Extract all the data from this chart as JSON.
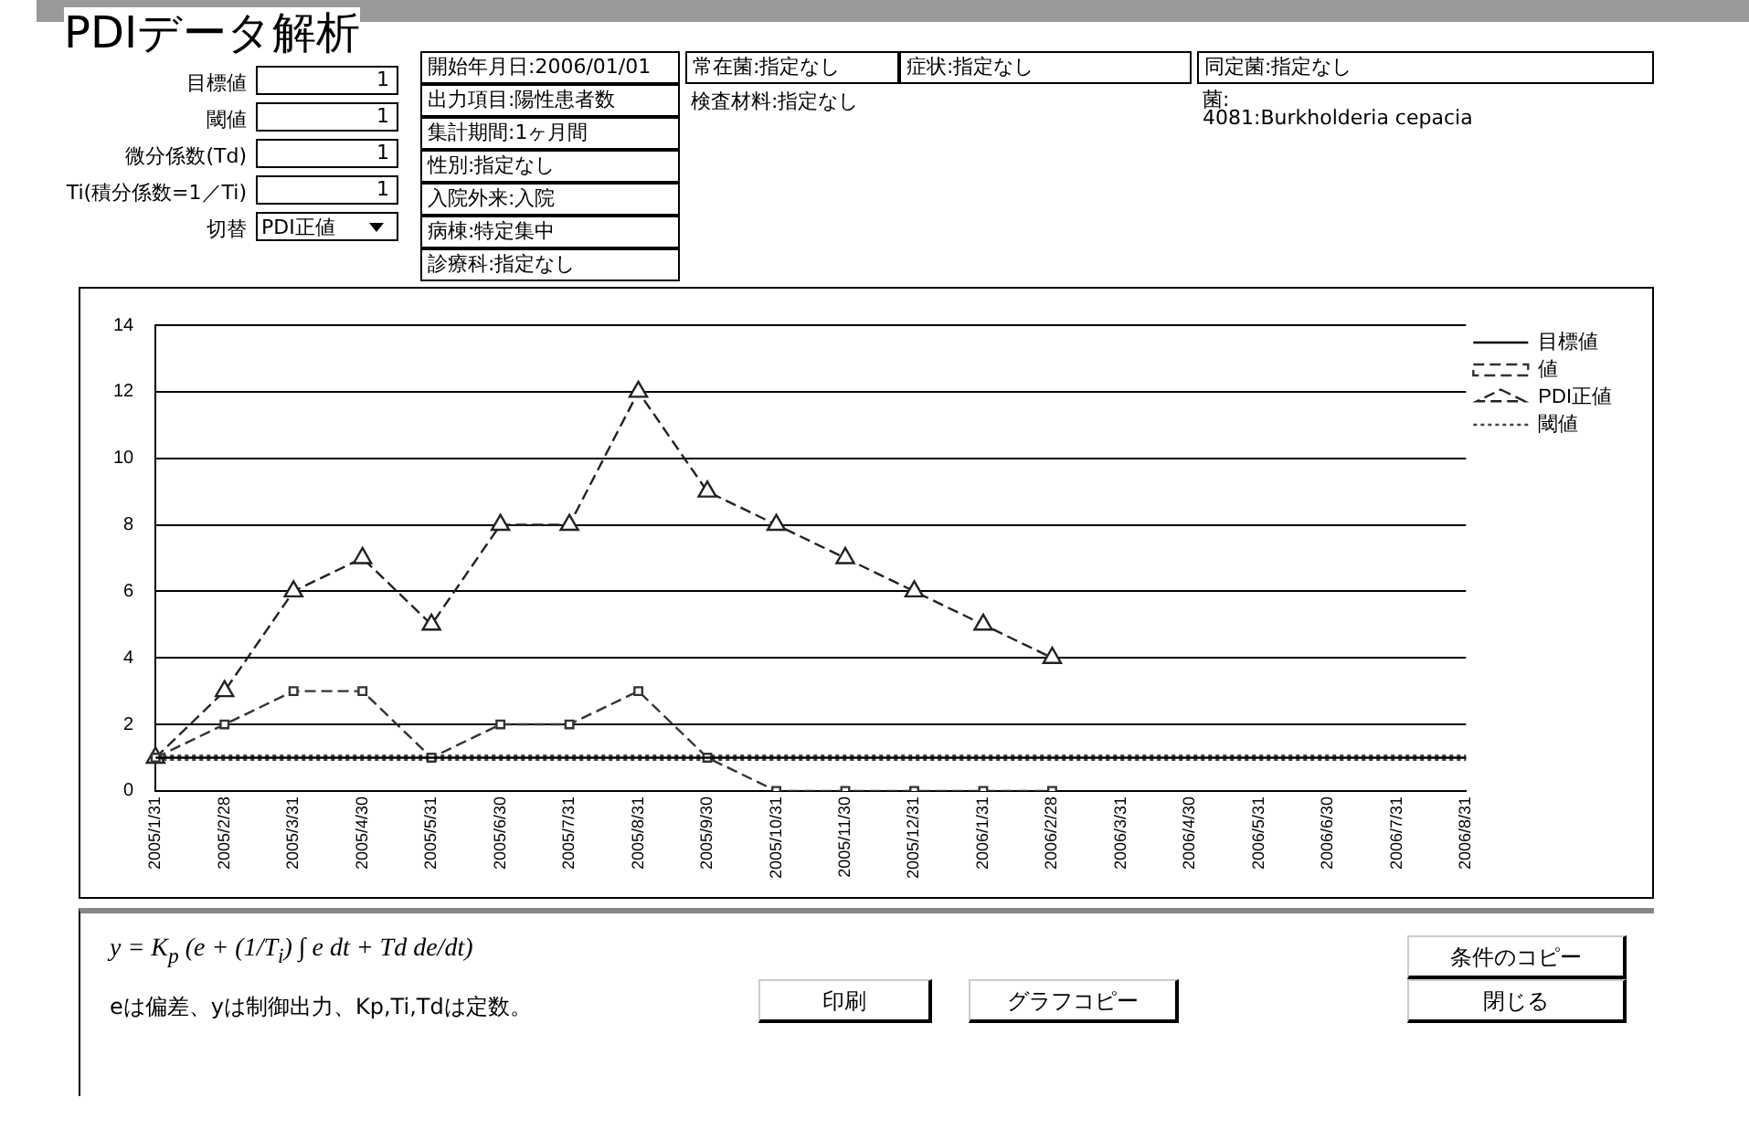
{
  "chart_data": {
    "type": "line",
    "title": "PDIデータ解析",
    "categories": [
      "2005/1/31",
      "2005/2/28",
      "2005/3/31",
      "2005/4/30",
      "2005/5/31",
      "2005/6/30",
      "2005/7/31",
      "2005/8/31",
      "2005/9/30",
      "2005/10/31",
      "2005/11/30",
      "2005/12/31",
      "2006/1/31",
      "2006/2/28",
      "2006/3/31",
      "2006/4/30",
      "2006/5/31",
      "2006/6/30",
      "2006/7/31",
      "2006/8/31"
    ],
    "series": [
      {
        "name": "目標値",
        "color": "#000000",
        "marker": "none",
        "line_style": "solid",
        "values": [
          1,
          1,
          1,
          1,
          1,
          1,
          1,
          1,
          1,
          1,
          1,
          1,
          1,
          1,
          1,
          1,
          1,
          1,
          1,
          1
        ]
      },
      {
        "name": "値",
        "color": "#333333",
        "marker": "square",
        "line_style": "dashed",
        "values": [
          1,
          2,
          3,
          3,
          1,
          2,
          2,
          3,
          1,
          0,
          0,
          0,
          0,
          0,
          null,
          null,
          null,
          null,
          null,
          null
        ]
      },
      {
        "name": "PDI正値",
        "color": "#222222",
        "marker": "triangle",
        "line_style": "dashed",
        "values": [
          1,
          3,
          6,
          7,
          5,
          8,
          8,
          12,
          9,
          8,
          7,
          6,
          5,
          4,
          null,
          null,
          null,
          null,
          null,
          null
        ]
      },
      {
        "name": "閾値",
        "color": "#444444",
        "marker": "none",
        "line_style": "dotted",
        "values": [
          1,
          1,
          1,
          1,
          1,
          1,
          1,
          1,
          1,
          1,
          1,
          1,
          1,
          1,
          1,
          1,
          1,
          1,
          1,
          1
        ]
      }
    ],
    "ylim": [
      0,
      14
    ],
    "yticks": [
      0,
      2,
      4,
      6,
      8,
      10,
      12,
      14
    ],
    "grid": "y",
    "legend": "right",
    "annotations": [
      "目標値",
      "1",
      "閾値",
      "1",
      "微分係数(Td)",
      "1",
      "Ti(積分係数=1／Ti)",
      "1",
      "切替",
      "PDI正値",
      "開始年月日:2006/01/01",
      "出力項目:陽性患者数",
      "集計期間:1ヶ月間",
      "性別:指定なし",
      "入院外来:入院",
      "病棟:特定集中",
      "診療科:指定なし",
      "常在菌:指定なし",
      "検査材料:指定なし",
      "症状:指定なし",
      "同定菌:指定なし",
      "菌:",
      "4081:Burkholderia cepacia",
      "y = K$_{p}$ (e + (1/T$_{i}$) ∫ e dt + Td de/dt)",
      "eは偏差、yは制御出力、Kp,Ti,Tdは定数。",
      "印刷",
      "グラフコピー",
      "条件のコピー",
      "閉じる"
    ]
  }
}
